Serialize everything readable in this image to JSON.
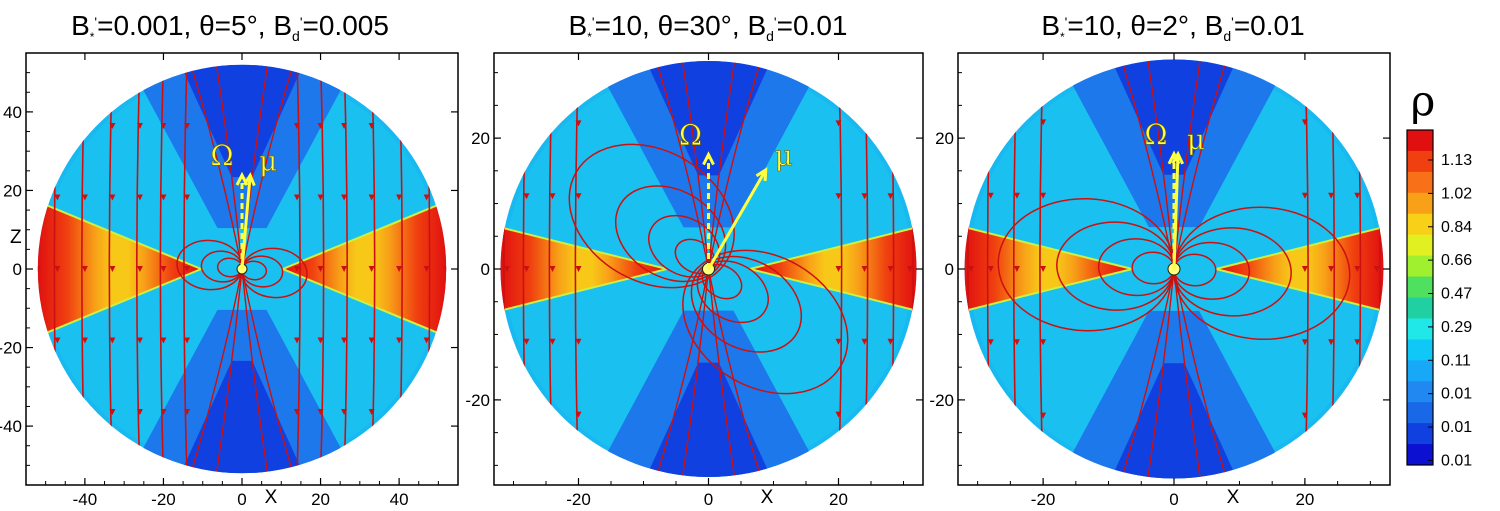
{
  "chart_data": [
    {
      "type": "heatmap",
      "title_parts": {
        "b1": "B",
        "s1": "*",
        "p1": "'",
        "rest1": "=0.001, θ=5°, B",
        "s2": "d",
        "p2": "'",
        "rest2": "=0.005"
      },
      "xlabel": "X",
      "ylabel": "Z",
      "xlim": [
        -55,
        55
      ],
      "ylim": [
        -55,
        55
      ],
      "disk_radius": 52,
      "xticks": [
        -40,
        -20,
        0,
        20,
        40
      ],
      "xtick_labels": [
        "-40",
        "-20",
        "0",
        "20",
        "40"
      ],
      "yticks": [
        40,
        20,
        0,
        -20,
        -40
      ],
      "ytick_labels": [
        "40",
        "20",
        "0",
        "-20",
        "-40"
      ],
      "theta_deg": 5,
      "omega_label": "Ω",
      "mu_label": "μ",
      "field_line_x": [
        -52,
        -47,
        -40,
        -33,
        -26,
        -20,
        -14,
        14,
        20,
        26,
        33,
        40,
        47,
        52
      ]
    },
    {
      "type": "heatmap",
      "title_parts": {
        "b1": "B",
        "s1": "*",
        "p1": "'",
        "rest1": "=10, θ=30°, B",
        "s2": "d",
        "p2": "'",
        "rest2": "=0.01"
      },
      "xlabel": "X",
      "ylabel": "",
      "xlim": [
        -33,
        33
      ],
      "ylim": [
        -33,
        33
      ],
      "disk_radius": 32,
      "xticks": [
        -20,
        0,
        20
      ],
      "xtick_labels": [
        "-20",
        "0",
        "20"
      ],
      "yticks": [
        20,
        0,
        -20
      ],
      "ytick_labels": [
        "20",
        "0",
        "-20"
      ],
      "theta_deg": 30,
      "omega_label": "Ω",
      "mu_label": "μ",
      "field_line_x": [
        -31,
        -28,
        -24,
        -20,
        20,
        24,
        28,
        31
      ]
    },
    {
      "type": "heatmap",
      "title_parts": {
        "b1": "B",
        "s1": "*",
        "p1": "'",
        "rest1": "=10, θ=2°, B",
        "s2": "d",
        "p2": "'",
        "rest2": "=0.01"
      },
      "xlabel": "X",
      "ylabel": "",
      "xlim": [
        -33,
        33
      ],
      "ylim": [
        -33,
        33
      ],
      "disk_radius": 32,
      "xticks": [
        -20,
        0,
        20
      ],
      "xtick_labels": [
        "-20",
        "0",
        "20"
      ],
      "yticks": [
        20,
        0,
        -20
      ],
      "ytick_labels": [
        "20",
        "0",
        "-20"
      ],
      "theta_deg": 2,
      "omega_label": "Ω",
      "mu_label": "μ",
      "field_line_x": [
        -31,
        -28,
        -24,
        -20,
        20,
        24,
        28,
        31
      ]
    }
  ],
  "colorbar": {
    "label": "ρ",
    "tick_labels": [
      "1.13",
      "1.02",
      "0.84",
      "0.66",
      "0.47",
      "0.29",
      "0.11",
      "0.01",
      "0.01",
      "0.01"
    ],
    "colors": [
      "#e01010",
      "#f04010",
      "#f87018",
      "#f8a018",
      "#f8d018",
      "#e0f020",
      "#a0f030",
      "#50e060",
      "#20d0a0",
      "#20e8e8",
      "#10c8f8",
      "#18a8f8",
      "#2088f0",
      "#1868e8",
      "#1040e0",
      "#0c10d0"
    ]
  },
  "colors": {
    "field_line": "#cc1010",
    "vector": "#ffff40",
    "disk": "#f06010",
    "corona": "#18b8f0",
    "funnel": "#1860e8"
  }
}
